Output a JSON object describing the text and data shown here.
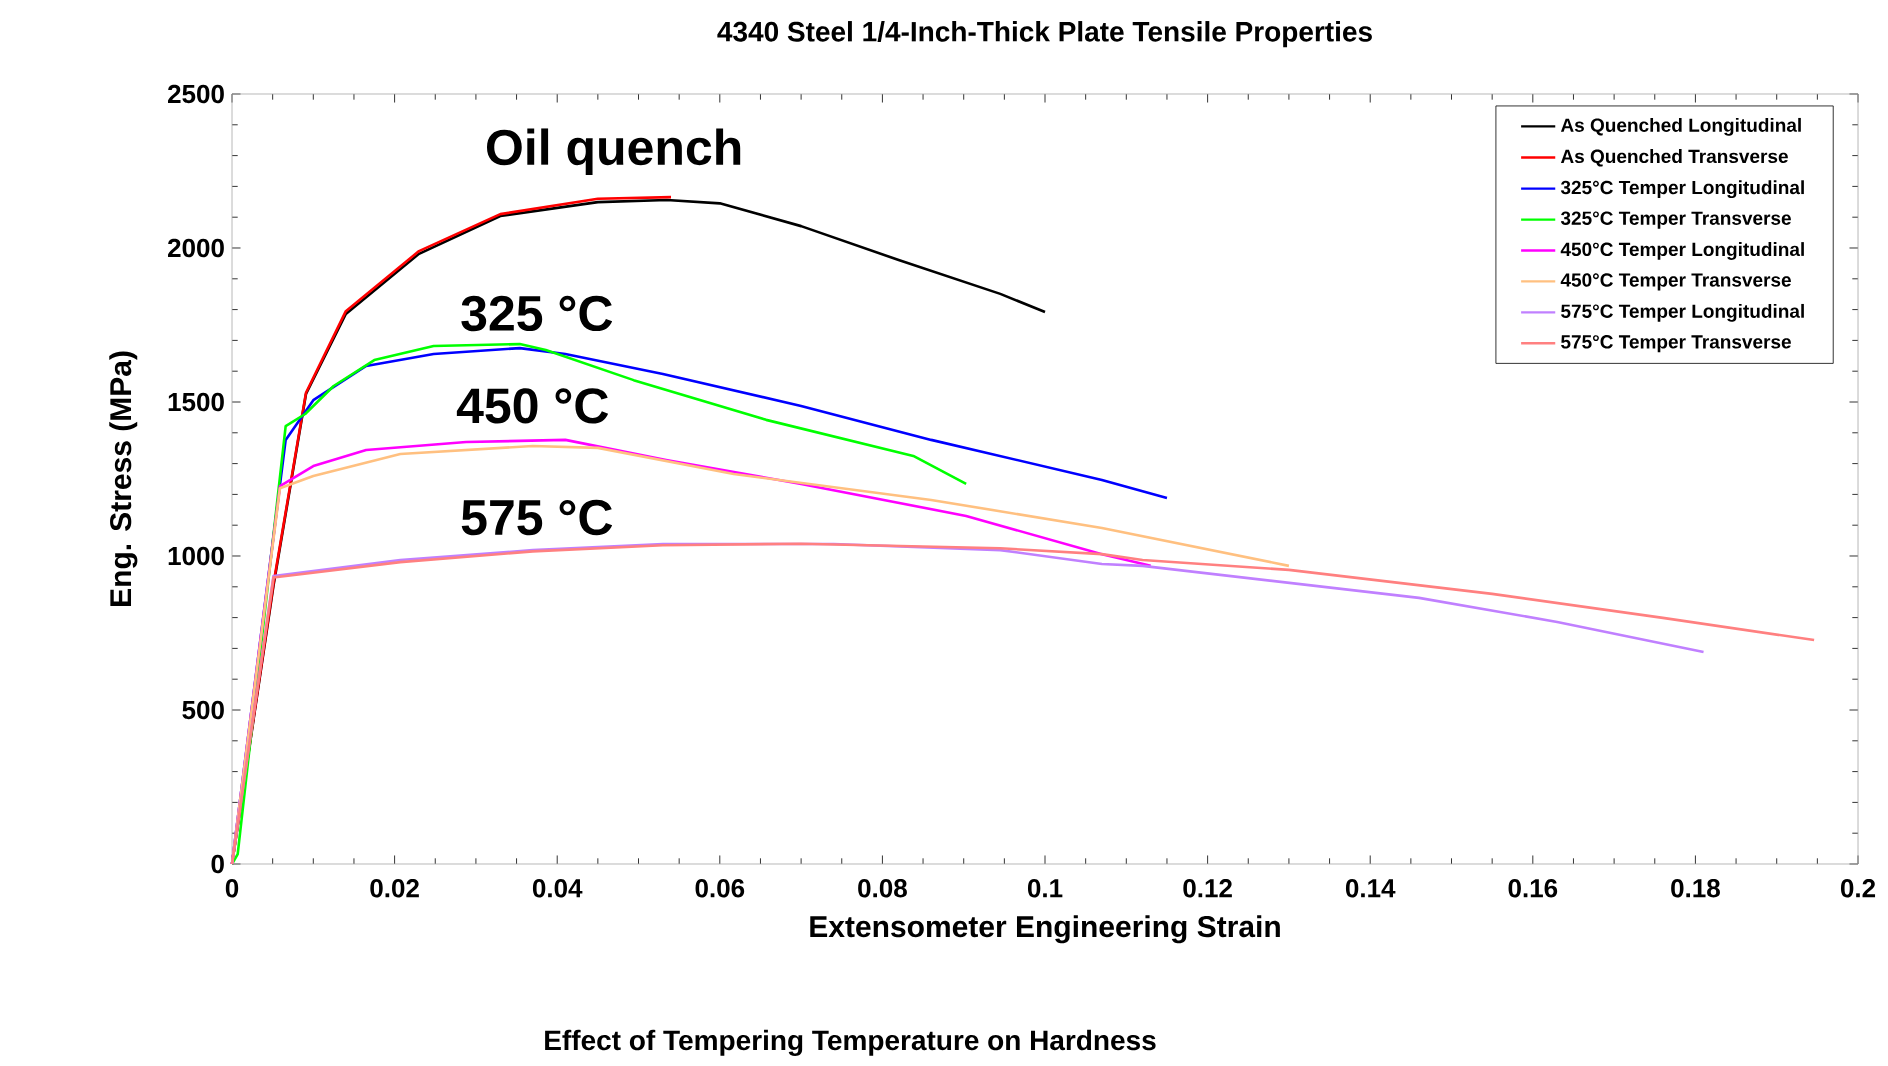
{
  "chart_data": {
    "type": "line",
    "title": "4340 Steel    1/4-Inch-Thick Plate    Tensile Properties",
    "xlabel": "Extensometer Engineering Strain",
    "ylabel": "Eng. Stress (MPa)",
    "xlim": [
      0,
      0.2
    ],
    "ylim": [
      0,
      2500
    ],
    "xticks": [
      0,
      0.02,
      0.04,
      0.06,
      0.08,
      0.1,
      0.12,
      0.14,
      0.16,
      0.18,
      0.2
    ],
    "yticks": [
      0,
      500,
      1000,
      1500,
      2000,
      2500
    ],
    "grid": false,
    "legend": "top right",
    "marker": "none",
    "line_style": "solid",
    "annotations": [
      "Oil quench",
      "325 °C",
      "450 °C",
      "575 °C",
      "Effect of Tempering Temperature on Hardness"
    ],
    "series": [
      {
        "name": "As Quenched  Longitudinal",
        "color": "#000000",
        "x": [
          0,
          0.0051,
          0.0091,
          0.014,
          0.023,
          0.033,
          0.045,
          0.0535,
          0.06,
          0.07,
          0.082,
          0.0945,
          0.1
        ],
        "values": [
          0,
          903,
          1526,
          1786,
          1981,
          2104,
          2149,
          2156,
          2145,
          2071,
          1961,
          1851,
          1792
        ]
      },
      {
        "name": "As Quenched  Transverse",
        "color": "#ff0000",
        "x": [
          0,
          0.0051,
          0.0091,
          0.014,
          0.023,
          0.033,
          0.045,
          0.054
        ],
        "values": [
          0,
          910,
          1530,
          1795,
          1990,
          2110,
          2160,
          2165
        ]
      },
      {
        "name": "325°C Temper  Longitudinal",
        "color": "#0000ff",
        "x": [
          0,
          0.0066,
          0.01,
          0.0165,
          0.0248,
          0.0354,
          0.041,
          0.053,
          0.07,
          0.086,
          0.107,
          0.115
        ],
        "values": [
          0,
          1377,
          1506,
          1617,
          1656,
          1675,
          1656,
          1591,
          1487,
          1377,
          1247,
          1188
        ]
      },
      {
        "name": "325°C Temper  Transverse",
        "color": "#00ff00",
        "x": [
          0,
          0.0007,
          0.0066,
          0.009,
          0.0125,
          0.0175,
          0.0248,
          0.0354,
          0.0386,
          0.0494,
          0.0657,
          0.0838,
          0.0903
        ],
        "values": [
          0,
          32,
          1422,
          1461,
          1552,
          1636,
          1682,
          1688,
          1669,
          1571,
          1442,
          1325,
          1234
        ]
      },
      {
        "name": "450°C Temper  Longitudinal",
        "color": "#ff00ff",
        "x": [
          0,
          0.0059,
          0.01,
          0.0165,
          0.0288,
          0.041,
          0.0534,
          0.07,
          0.0903,
          0.107,
          0.113
        ],
        "values": [
          0,
          1227,
          1292,
          1344,
          1370,
          1377,
          1312,
          1234,
          1130,
          1006,
          968
        ]
      },
      {
        "name": "450°C Temper  Transverse",
        "color": "#ffc080",
        "x": [
          0,
          0.0059,
          0.01,
          0.0207,
          0.037,
          0.045,
          0.0617,
          0.086,
          0.107,
          0.13
        ],
        "values": [
          0,
          1220,
          1260,
          1331,
          1357,
          1351,
          1266,
          1182,
          1091,
          968
        ]
      },
      {
        "name": "575°C Temper  Longitudinal",
        "color": "#c080ff",
        "x": [
          0,
          0.0051,
          0.0207,
          0.037,
          0.053,
          0.074,
          0.0945,
          0.107,
          0.112,
          0.146,
          0.163,
          0.181
        ],
        "values": [
          0,
          935,
          987,
          1019,
          1039,
          1039,
          1019,
          974,
          968,
          864,
          786,
          688
        ]
      },
      {
        "name": "575°C Temper  Transverse",
        "color": "#ff8080",
        "x": [
          0,
          0.0051,
          0.0207,
          0.037,
          0.053,
          0.07,
          0.0945,
          0.107,
          0.112,
          0.13,
          0.155,
          0.176,
          0.1946
        ],
        "values": [
          0,
          930,
          980,
          1015,
          1035,
          1040,
          1025,
          1006,
          987,
          955,
          877,
          799,
          727
        ]
      }
    ]
  }
}
